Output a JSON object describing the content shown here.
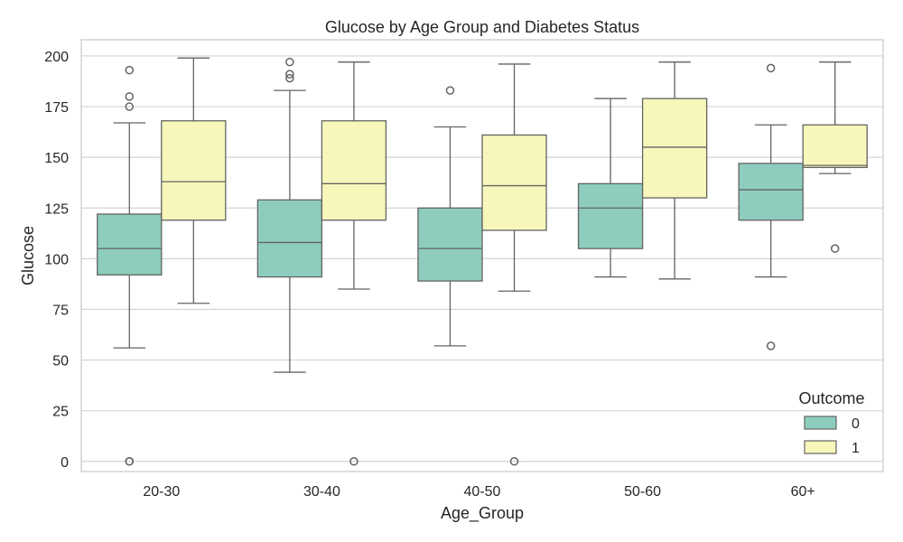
{
  "chart_data": {
    "type": "box",
    "title": "Glucose by Age Group and Diabetes Status",
    "xlabel": "Age_Group",
    "ylabel": "Glucose",
    "ylim": [
      -5,
      208
    ],
    "yticks": [
      0,
      25,
      50,
      75,
      100,
      125,
      150,
      175,
      200
    ],
    "grid": "horizontal",
    "categories": [
      "20-30",
      "30-40",
      "40-50",
      "50-60",
      "60+"
    ],
    "legend": {
      "title": "Outcome",
      "position": "lower-right"
    },
    "series": [
      {
        "name": "0",
        "color": "#8ecdbe",
        "boxes": [
          {
            "min": 56,
            "q1": 92,
            "median": 105,
            "q3": 122,
            "max": 167,
            "outliers": [
              193,
              180,
              175,
              0,
              0
            ]
          },
          {
            "min": 44,
            "q1": 91,
            "median": 108,
            "q3": 129,
            "max": 183,
            "outliers": [
              197,
              191,
              189
            ]
          },
          {
            "min": 57,
            "q1": 89,
            "median": 105,
            "q3": 125,
            "max": 165,
            "outliers": [
              183
            ]
          },
          {
            "min": 91,
            "q1": 105,
            "median": 125,
            "q3": 137,
            "max": 179,
            "outliers": []
          },
          {
            "min": 91,
            "q1": 119,
            "median": 134,
            "q3": 147,
            "max": 166,
            "outliers": [
              194,
              57
            ]
          }
        ]
      },
      {
        "name": "1",
        "color": "#f7f7bb",
        "boxes": [
          {
            "min": 78,
            "q1": 119,
            "median": 138,
            "q3": 168,
            "max": 199,
            "outliers": []
          },
          {
            "min": 85,
            "q1": 119,
            "median": 137,
            "q3": 168,
            "max": 197,
            "outliers": [
              0
            ]
          },
          {
            "min": 84,
            "q1": 114,
            "median": 136,
            "q3": 161,
            "max": 196,
            "outliers": [
              0
            ]
          },
          {
            "min": 90,
            "q1": 130,
            "median": 155,
            "q3": 179,
            "max": 197,
            "outliers": []
          },
          {
            "min": 142,
            "q1": 145,
            "median": 146,
            "q3": 166,
            "max": 197,
            "outliers": [
              105
            ]
          }
        ]
      }
    ]
  }
}
